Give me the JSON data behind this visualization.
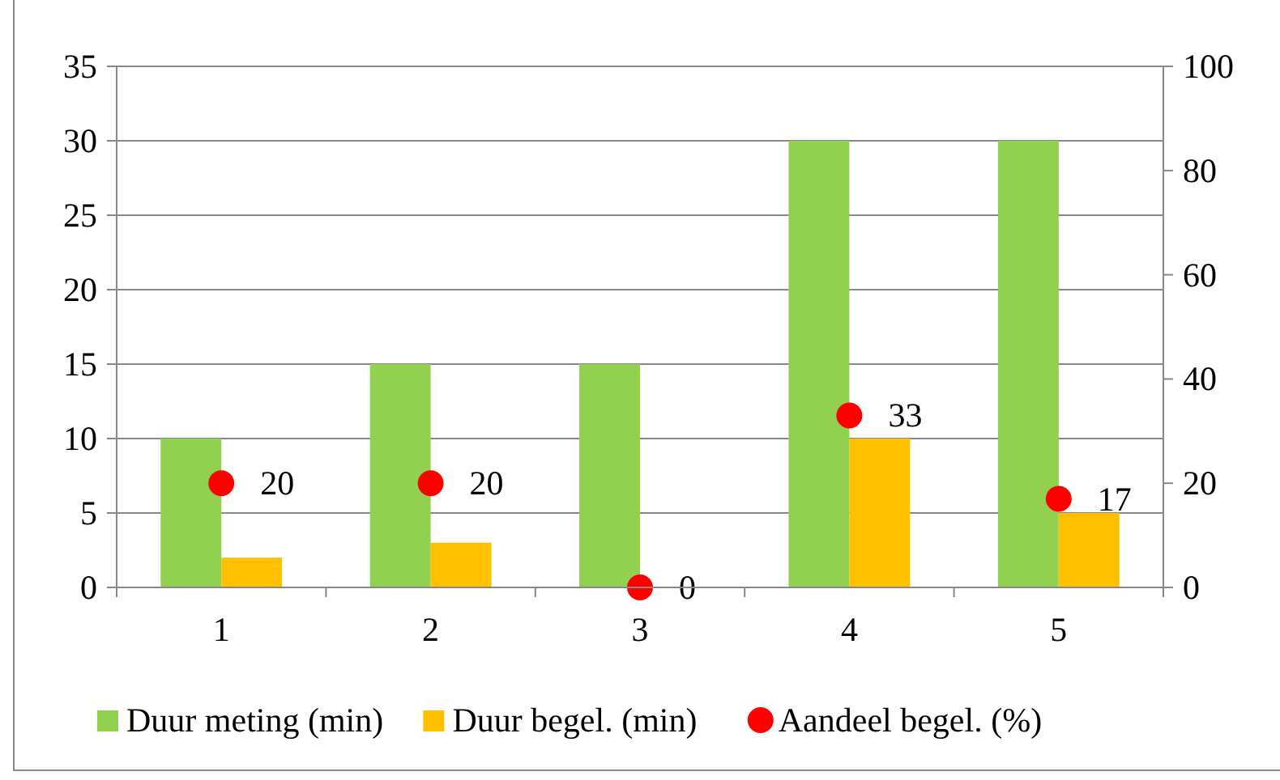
{
  "chart_data": {
    "type": "bar",
    "categories": [
      "1",
      "2",
      "3",
      "4",
      "5"
    ],
    "series": [
      {
        "name": "Duur meting (min)",
        "color": "#92d050",
        "values": [
          10,
          15,
          15,
          30,
          30
        ]
      },
      {
        "name": "Duur begel. (min)",
        "color": "#ffc000",
        "values": [
          2,
          3,
          0,
          10,
          5
        ]
      },
      {
        "name": "Aandeel begel. (%)",
        "type": "scatter",
        "axis": "y2",
        "color": "#ff0000",
        "values": [
          20,
          20,
          0,
          33,
          17
        ],
        "data_labels": true
      }
    ],
    "ylim": [
      0,
      35
    ],
    "yticks": [
      0,
      5,
      10,
      15,
      20,
      25,
      30,
      35
    ],
    "y2lim": [
      0,
      100
    ],
    "y2ticks": [
      0,
      20,
      40,
      60,
      80,
      100
    ],
    "grid": "y",
    "legend": "bottom",
    "marker": "circle"
  }
}
